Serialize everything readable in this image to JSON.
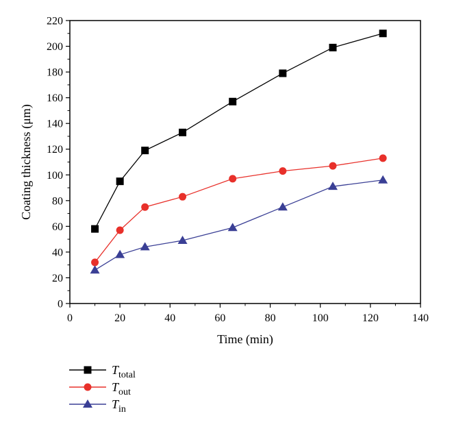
{
  "chart_data": {
    "type": "line",
    "title": "",
    "xlabel": "Time (min)",
    "ylabel": "Coating thickness (μm)",
    "xlim": [
      0,
      140
    ],
    "ylim": [
      0,
      220
    ],
    "xticks": [
      0,
      20,
      40,
      60,
      80,
      100,
      120,
      140
    ],
    "yticks": [
      0,
      20,
      40,
      60,
      80,
      100,
      120,
      140,
      160,
      180,
      200,
      220
    ],
    "grid": false,
    "legend_position": "bottom-left",
    "x": [
      10,
      20,
      30,
      45,
      65,
      85,
      105,
      125
    ],
    "series": [
      {
        "name": "Ttotal",
        "label_main": "T",
        "label_sub": "total",
        "color": "#000000",
        "marker": "square",
        "values": [
          58,
          95,
          119,
          133,
          157,
          179,
          199,
          210
        ]
      },
      {
        "name": "Tout",
        "label_main": "T",
        "label_sub": "out",
        "color": "#e8302a",
        "marker": "circle",
        "values": [
          32,
          57,
          75,
          83,
          97,
          103,
          107,
          113
        ]
      },
      {
        "name": "Tin",
        "label_main": "T",
        "label_sub": "in",
        "color": "#3a3f95",
        "marker": "triangle",
        "values": [
          26,
          38,
          44,
          49,
          59,
          75,
          91,
          96
        ]
      }
    ]
  }
}
